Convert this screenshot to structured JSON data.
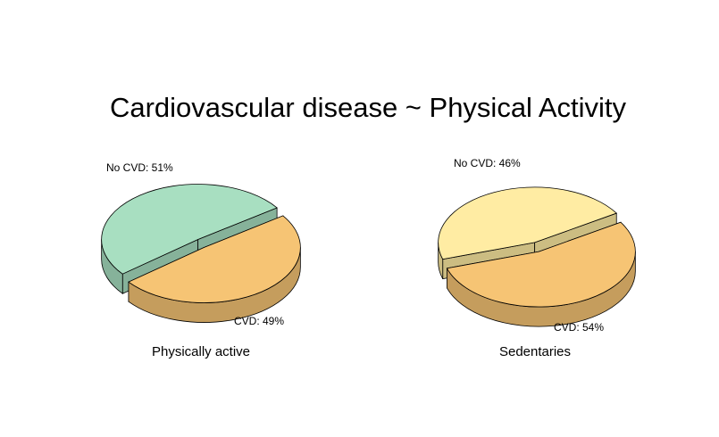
{
  "title": "Cardiovascular disease ~ Physical Activity",
  "colors": {
    "no_cvd_active": "#a8dfc1",
    "no_cvd_sedentary": "#ffeca3",
    "cvd": "#f6c474"
  },
  "chart_data": [
    {
      "type": "pie",
      "style": "3d-exploded",
      "caption": "Physically active",
      "slices": [
        {
          "name": "No CVD",
          "label": "No CVD: 51%",
          "value": 51,
          "color": "#a8dfc1"
        },
        {
          "name": "CVD",
          "label": "CVD: 49%",
          "value": 49,
          "color": "#f6c474"
        }
      ]
    },
    {
      "type": "pie",
      "style": "3d-exploded",
      "caption": "Sedentaries",
      "slices": [
        {
          "name": "No CVD",
          "label": "No CVD: 46%",
          "value": 46,
          "color": "#ffeca3"
        },
        {
          "name": "CVD",
          "label": "CVD: 54%",
          "value": 54,
          "color": "#f6c474"
        }
      ]
    }
  ]
}
